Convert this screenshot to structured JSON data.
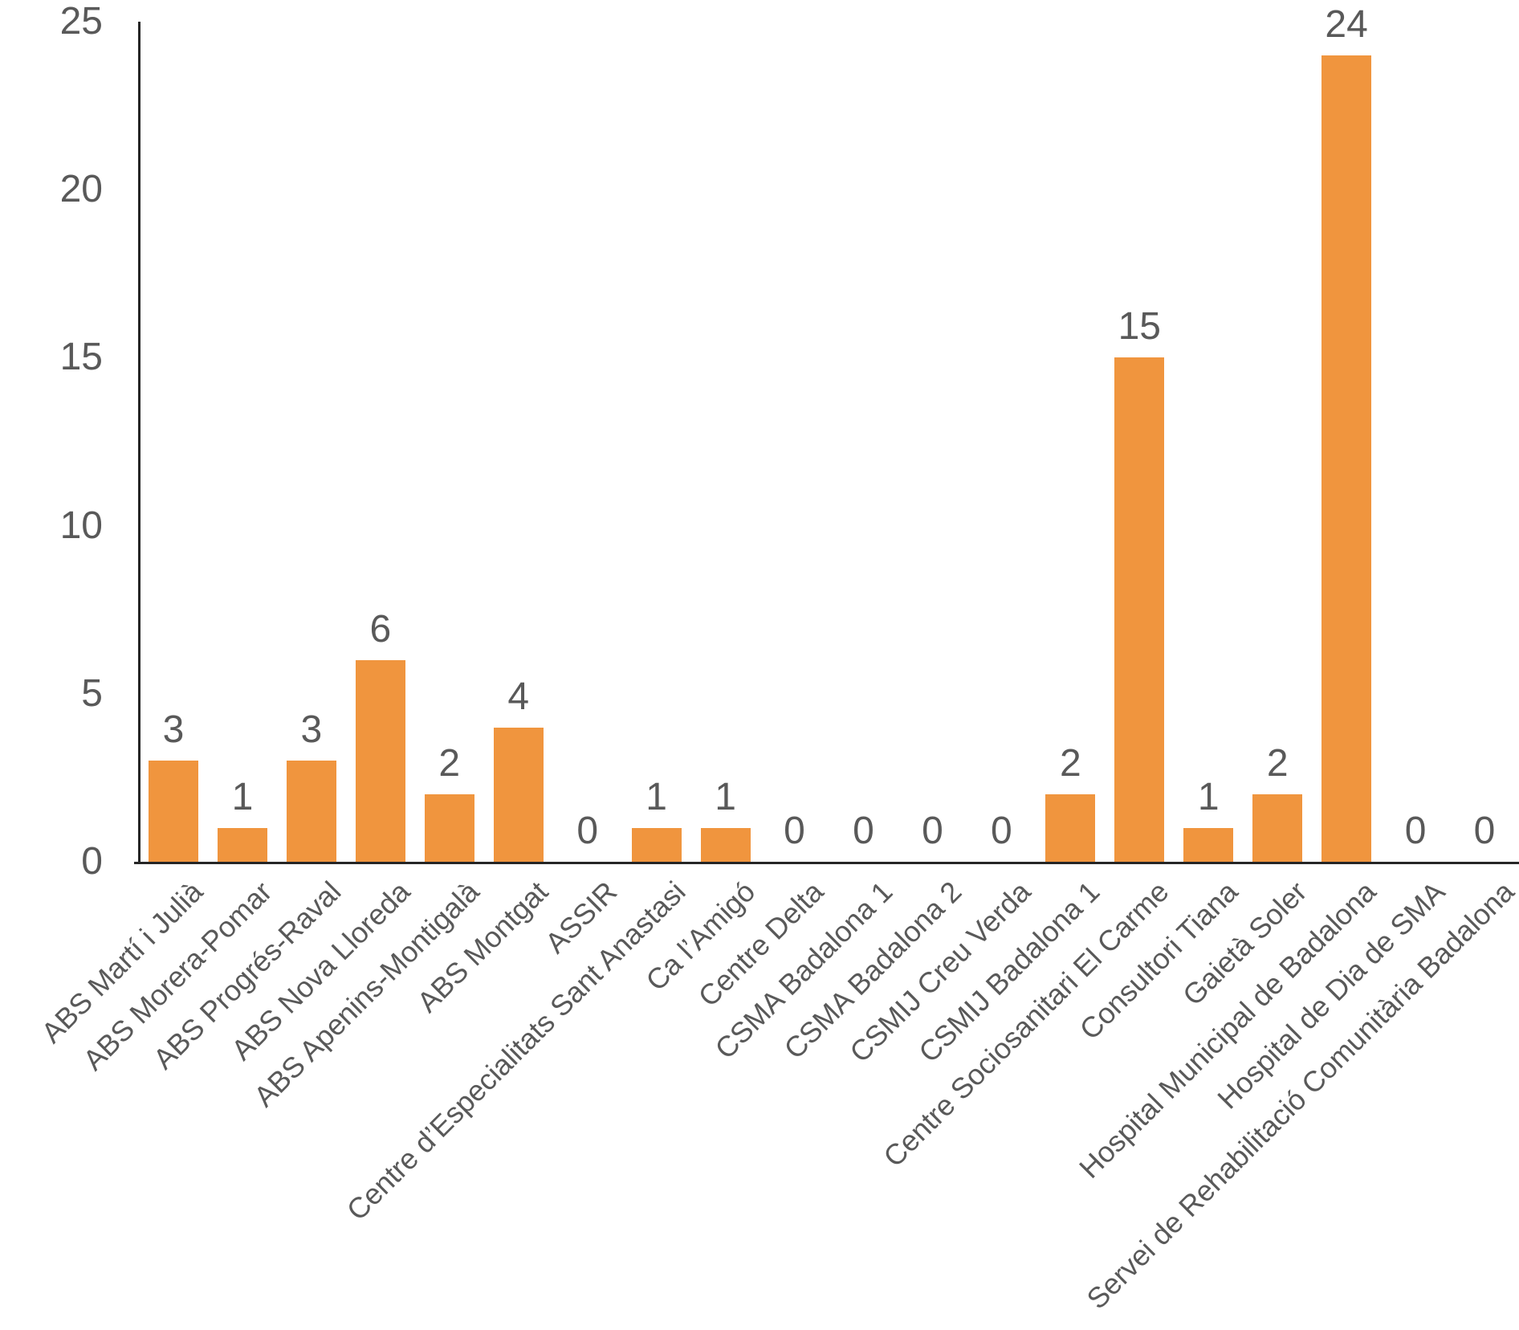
{
  "chart_data": {
    "type": "bar",
    "title": "",
    "xlabel": "",
    "ylabel": "",
    "categories": [
      "ABS Martí i Julià",
      "ABS Morera-Pomar",
      "ABS Progrés-Raval",
      "ABS Nova Lloreda",
      "ABS Apenins-Montigalà",
      "ABS Montgat",
      "ASSIR",
      "Centre d’Especialitats Sant Anastasi",
      "Ca l’Amigó",
      "Centre Delta",
      "CSMA Badalona 1",
      "CSMA Badalona 2",
      "CSMIJ Creu Verda",
      "CSMIJ Badalona 1",
      "Centre Sociosanitari El Carme",
      "Consultori Tiana",
      "Gaietà Soler",
      "Hospital Municipal de Badalona",
      "Hospital de Dia de SMA",
      "Servei de Rehabilitació Comunitària Badalona"
    ],
    "values": [
      3,
      1,
      3,
      6,
      2,
      4,
      0,
      1,
      1,
      0,
      0,
      0,
      0,
      2,
      15,
      1,
      2,
      24,
      0,
      0
    ],
    "data_labels_shown": true,
    "ylim": [
      0,
      25
    ],
    "yticks": [
      0,
      5,
      10,
      15,
      20,
      25
    ],
    "grid": false,
    "legend": false,
    "bar_color": "#F0953E",
    "tick_label_color": "#595959",
    "value_label_color": "#595959",
    "axis_line_color": "#262626",
    "category_label_rotation_deg": 45
  }
}
